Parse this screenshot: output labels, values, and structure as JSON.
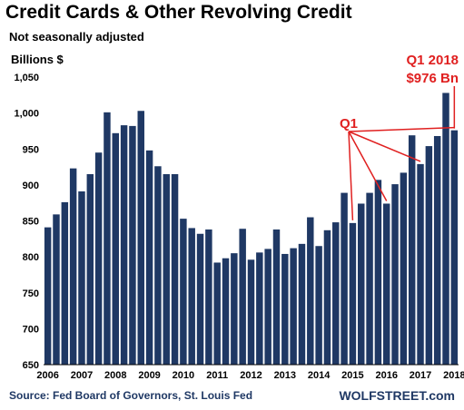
{
  "header": {
    "title": "Credit Cards & Other Revolving Credit",
    "subtitle": "Not seasonally adjusted",
    "unit_label": "Billions $"
  },
  "footer": {
    "source": "Source: Fed Board of Governors, St. Louis Fed",
    "brand": "WOLFSTREET.com"
  },
  "annotations": {
    "q1_label": "Q1",
    "latest_line1": "Q1 2018",
    "latest_line2": "$976 Bn"
  },
  "colors": {
    "bar": "#1f3864",
    "annotation": "#e02020"
  },
  "chart_data": {
    "type": "bar",
    "title": "Credit Cards & Other Revolving Credit",
    "subtitle": "Not seasonally adjusted",
    "ylabel": "Billions $",
    "ylim": [
      650,
      1050
    ],
    "yticks": [
      650,
      700,
      750,
      800,
      850,
      900,
      950,
      "1,000",
      "1,050"
    ],
    "xticks": [
      "2006",
      "2007",
      "2008",
      "2009",
      "2010",
      "2011",
      "2012",
      "2013",
      "2014",
      "2015",
      "2016",
      "2017",
      "2018"
    ],
    "categories": [
      "2006 Q1",
      "2006 Q2",
      "2006 Q3",
      "2006 Q4",
      "2007 Q1",
      "2007 Q2",
      "2007 Q3",
      "2007 Q4",
      "2008 Q1",
      "2008 Q2",
      "2008 Q3",
      "2008 Q4",
      "2009 Q1",
      "2009 Q2",
      "2009 Q3",
      "2009 Q4",
      "2010 Q1",
      "2010 Q2",
      "2010 Q3",
      "2010 Q4",
      "2011 Q1",
      "2011 Q2",
      "2011 Q3",
      "2011 Q4",
      "2012 Q1",
      "2012 Q2",
      "2012 Q3",
      "2012 Q4",
      "2013 Q1",
      "2013 Q2",
      "2013 Q3",
      "2013 Q4",
      "2014 Q1",
      "2014 Q2",
      "2014 Q3",
      "2014 Q4",
      "2015 Q1",
      "2015 Q2",
      "2015 Q3",
      "2015 Q4",
      "2016 Q1",
      "2016 Q2",
      "2016 Q3",
      "2016 Q4",
      "2017 Q1",
      "2017 Q2",
      "2017 Q3",
      "2017 Q4",
      "2018 Q1"
    ],
    "values": [
      841,
      859,
      876,
      923,
      891,
      915,
      945,
      1001,
      972,
      983,
      982,
      1003,
      948,
      926,
      915,
      915,
      853,
      840,
      832,
      838,
      792,
      798,
      805,
      839,
      796,
      806,
      811,
      838,
      804,
      812,
      818,
      855,
      815,
      837,
      848,
      889,
      847,
      874,
      889,
      907,
      874,
      901,
      917,
      969,
      929,
      954,
      968,
      1028,
      976
    ],
    "highlight_q1_indices": [
      36,
      40,
      44,
      48
    ],
    "grid": false,
    "legend": "none"
  }
}
